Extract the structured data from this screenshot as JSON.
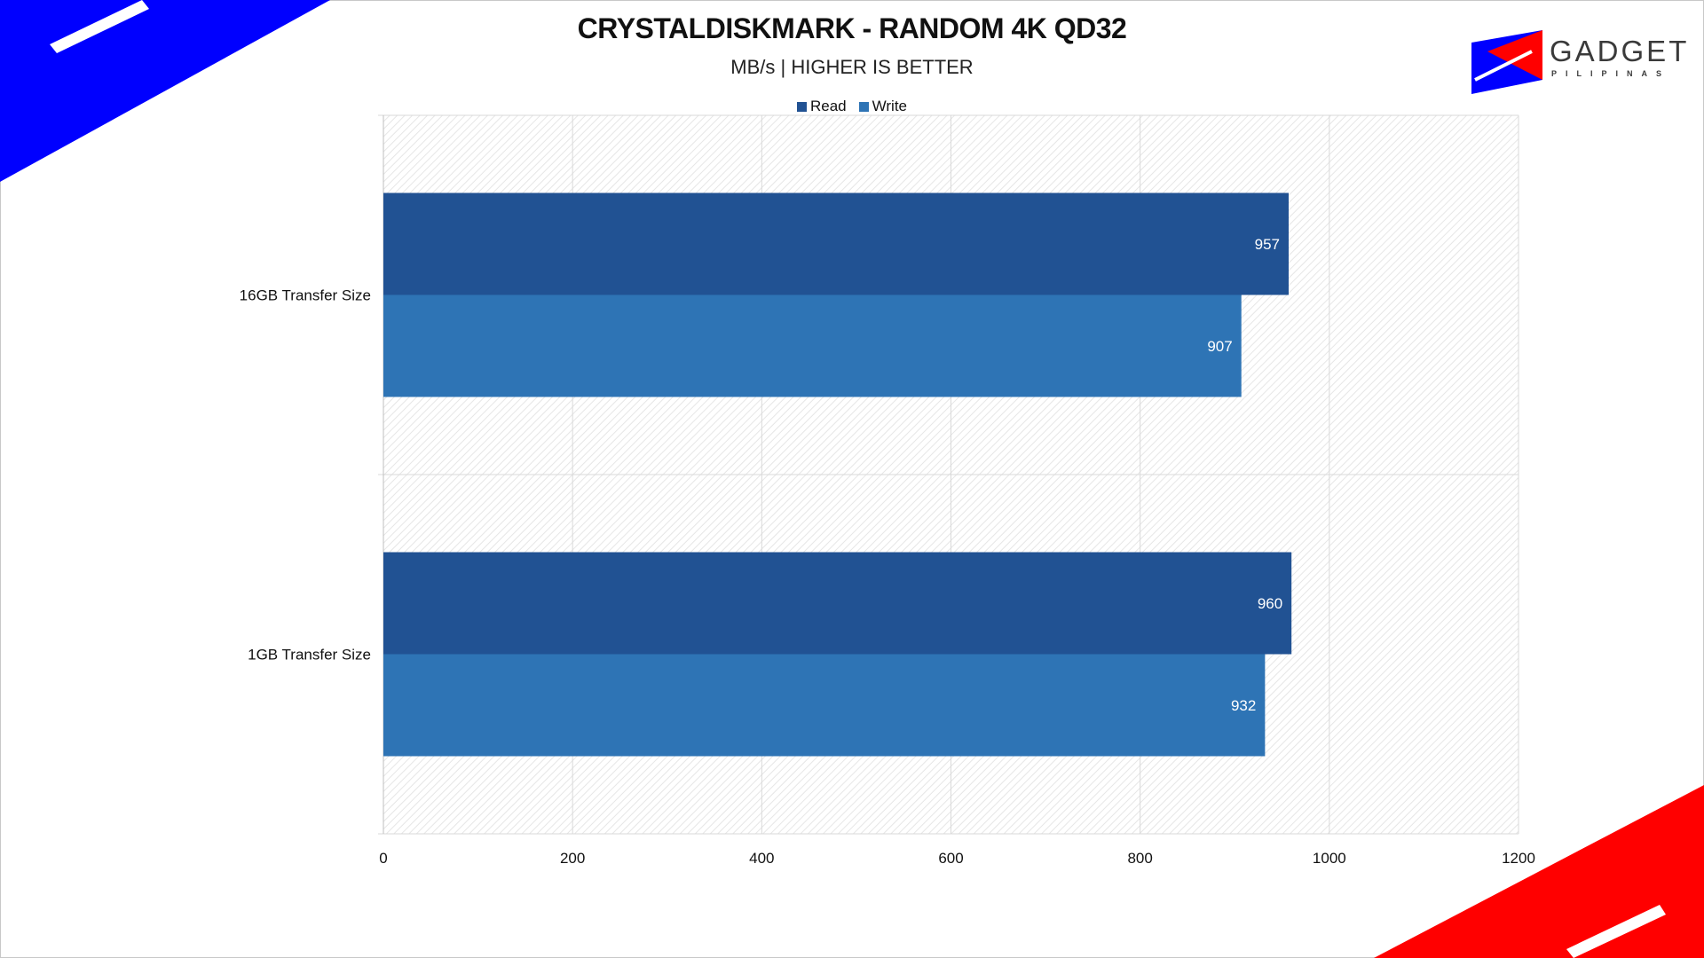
{
  "title": "CRYSTALDISKMARK - RANDOM 4K QD32",
  "subtitle": "MB/s | HIGHER IS BETTER",
  "logo": {
    "text": "GADGET",
    "sub": "PILIPINAS"
  },
  "colors": {
    "read": "#215293",
    "write": "#2e74b5",
    "accent_blue": "#0000ff",
    "accent_red": "#ff0000"
  },
  "chart_data": {
    "type": "bar",
    "orientation": "horizontal",
    "categories": [
      "16GB Transfer Size",
      "1GB Transfer Size"
    ],
    "series": [
      {
        "name": "Read",
        "values": [
          957,
          960
        ]
      },
      {
        "name": "Write",
        "values": [
          907,
          932
        ]
      }
    ],
    "xlim": [
      0,
      1200
    ],
    "xticks": [
      0,
      200,
      400,
      600,
      800,
      1000,
      1200
    ],
    "grid": true,
    "legend_position": "top"
  }
}
